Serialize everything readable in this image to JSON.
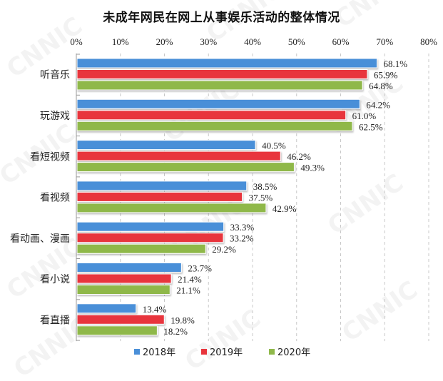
{
  "chart_data": {
    "type": "bar",
    "orientation": "horizontal",
    "title": "未成年网民在网上从事娱乐活动的整体情况",
    "xlabel": "",
    "ylabel": "",
    "xlim": [
      0,
      80
    ],
    "x_ticks": [
      "0%",
      "10%",
      "20%",
      "30%",
      "40%",
      "50%",
      "60%",
      "70%",
      "80%"
    ],
    "grid": true,
    "legend_position": "bottom",
    "categories": [
      "听音乐",
      "玩游戏",
      "看短视频",
      "看视频",
      "看动画、漫画",
      "看小说",
      "看直播"
    ],
    "series": [
      {
        "name": "2018年",
        "color": "#4a8fd8",
        "values": [
          68.1,
          64.2,
          40.5,
          38.5,
          33.3,
          23.7,
          13.4
        ],
        "labels": [
          "68.1%",
          "64.2%",
          "40.5%",
          "38.5%",
          "33.3%",
          "23.7%",
          "13.4%"
        ]
      },
      {
        "name": "2019年",
        "color": "#e8343c",
        "values": [
          65.9,
          61.0,
          46.2,
          37.5,
          33.2,
          21.4,
          19.8
        ],
        "labels": [
          "65.9%",
          "61.0%",
          "46.2%",
          "37.5%",
          "33.2%",
          "21.4%",
          "19.8%"
        ]
      },
      {
        "name": "2020年",
        "color": "#8fb84a",
        "values": [
          64.8,
          62.5,
          49.3,
          42.9,
          29.2,
          21.1,
          18.2
        ],
        "labels": [
          "64.8%",
          "62.5%",
          "49.3%",
          "42.9%",
          "29.2%",
          "21.1%",
          "18.2%"
        ]
      }
    ],
    "watermark": "CNNIC"
  }
}
